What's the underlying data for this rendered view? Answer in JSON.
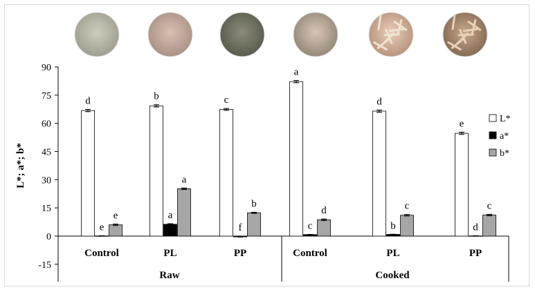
{
  "chart_data": {
    "type": "bar",
    "ylabel": "L*; a*; b*",
    "ylim": [
      -15,
      90
    ],
    "yticks": [
      -15,
      0,
      15,
      30,
      45,
      60,
      75,
      90
    ],
    "categories": [
      "Control",
      "PL",
      "PP",
      "Control",
      "PL",
      "PP"
    ],
    "groups": [
      {
        "label": "Raw",
        "categories": [
          "Control",
          "PL",
          "PP"
        ]
      },
      {
        "label": "Cooked",
        "categories": [
          "Control",
          "PL",
          "PP"
        ]
      }
    ],
    "series": [
      {
        "name": "L*",
        "color": "#ffffff",
        "values": [
          66.8,
          69.3,
          67.4,
          82.2,
          66.5,
          54.7
        ],
        "errors": [
          0.6,
          0.6,
          0.5,
          0.6,
          0.6,
          0.6
        ],
        "letters": [
          "d",
          "b",
          "c",
          "a",
          "d",
          "e"
        ]
      },
      {
        "name": "a*",
        "color": "#000000",
        "values": [
          0.1,
          6.3,
          -0.4,
          0.8,
          0.9,
          0.1
        ],
        "errors": [
          0.1,
          0.3,
          0.1,
          0.1,
          0.1,
          0.1
        ],
        "letters": [
          "e",
          "a",
          "f",
          "c",
          "b",
          "d"
        ]
      },
      {
        "name": "b*",
        "color": "#a6a6a6",
        "values": [
          6.0,
          25.2,
          12.4,
          8.7,
          11.1,
          11.2
        ],
        "errors": [
          0.4,
          0.4,
          0.3,
          0.4,
          0.4,
          0.4
        ],
        "letters": [
          "e",
          "a",
          "b",
          "d",
          "c",
          "c"
        ]
      }
    ],
    "legend": "right",
    "grid": false,
    "images": [
      "raw-control-sample",
      "raw-pl-sample",
      "raw-pp-sample",
      "cooked-control-sample",
      "cooked-pl-sample",
      "cooked-pp-sample"
    ]
  }
}
